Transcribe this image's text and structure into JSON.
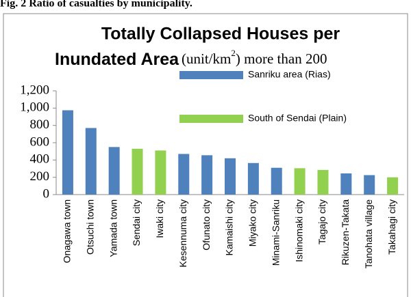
{
  "caption": "Fig. 2   Ratio of casualties by municipality.",
  "chart_data": {
    "type": "bar",
    "title_lines": [
      "Totally Collapsed Houses per",
      "Inundated Area"
    ],
    "subtitle": {
      "text": "(unit/km",
      "sup": "2",
      "tail": ") more than 200"
    },
    "categories": [
      "Onagawa town",
      "Otsuchi town",
      "Yamada town",
      "Sendai city",
      "Iwaki city",
      "Kesennuma city",
      "Ofunato city",
      "Kamaishi city",
      "Miyako city",
      "Minami-Sanriku",
      "Ishinomaki city",
      "Tagajo city",
      "Rikuzen-Takata",
      "Tanohata village",
      "Takahagi city"
    ],
    "series": [
      {
        "name": "Sanriku area (Rias)",
        "color": "#4f81bd",
        "values": [
          975,
          770,
          550,
          null,
          null,
          470,
          455,
          420,
          365,
          310,
          null,
          null,
          245,
          225,
          null
        ]
      },
      {
        "name": "South of Sendai (Plain)",
        "color": "#92d050",
        "values": [
          null,
          null,
          null,
          530,
          510,
          null,
          null,
          null,
          null,
          null,
          305,
          285,
          null,
          null,
          200
        ]
      }
    ],
    "ylim": [
      0,
      1200
    ],
    "yticks": [
      0,
      200,
      400,
      600,
      800,
      {
        "value": 1000,
        "label": "1,000"
      },
      {
        "value": 1200,
        "label": "1,200"
      }
    ],
    "grid": false,
    "legend": "top-right"
  }
}
